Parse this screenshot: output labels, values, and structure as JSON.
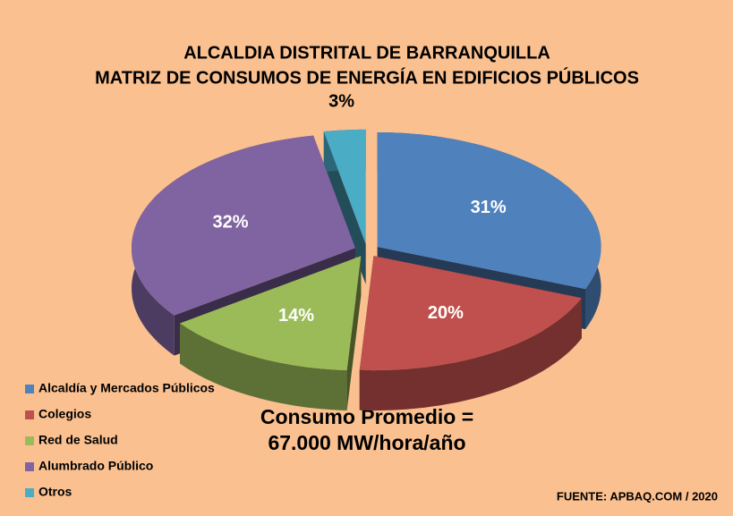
{
  "chart_data": {
    "type": "pie",
    "title": [
      "ALCALDIA DISTRITAL  DE BARRANQUILLA",
      "MATRIZ DE CONSUMOS DE ENERGÍA EN EDIFICIOS PÚBLICOS"
    ],
    "categories": [
      "Alcaldía y Mercados Públicos",
      "Colegios",
      "Red de Salud",
      "Alumbrado Público",
      "Otros"
    ],
    "values": [
      31,
      20,
      14,
      32,
      3
    ],
    "value_labels": [
      "31%",
      "20%",
      "14%",
      "32%",
      "3%"
    ],
    "colors": [
      "#4f81bd",
      "#c0504d",
      "#9bbb59",
      "#8064a2",
      "#4bacc6"
    ],
    "annotation": [
      "Consumo Promedio =",
      "67.000 MW/hora/año"
    ],
    "source": "FUENTE: APBAQ.COM / 2020",
    "legend": "bottom-left"
  }
}
